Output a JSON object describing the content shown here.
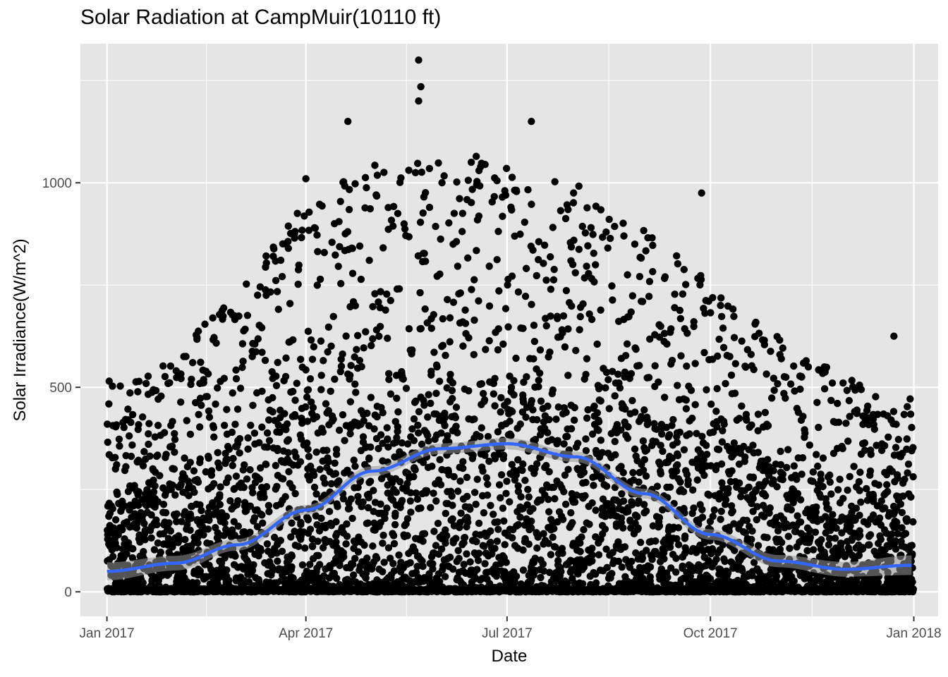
{
  "chart_data": {
    "type": "scatter",
    "title": "Solar Radiation at CampMuir(10110 ft)",
    "xlabel": "Date",
    "ylabel": "Solar Irradiance(W/m^2)",
    "xlim": [
      "2016-12-20",
      "2018-01-12"
    ],
    "ylim": [
      -60,
      1340
    ],
    "x_ticks": [
      {
        "label": "Jan 2017",
        "date": "2017-01-01"
      },
      {
        "label": "Apr 2017",
        "date": "2017-04-01"
      },
      {
        "label": "Jul 2017",
        "date": "2017-07-01"
      },
      {
        "label": "Oct 2017",
        "date": "2017-10-01"
      },
      {
        "label": "Jan 2018",
        "date": "2018-01-01"
      }
    ],
    "y_ticks": [
      {
        "label": "0",
        "value": 0
      },
      {
        "label": "500",
        "value": 500
      },
      {
        "label": "1000",
        "value": 1000
      }
    ],
    "grid": true,
    "legend": "none",
    "point_color": "#000000",
    "smooth_color": "#3366ff",
    "smooth_band_color": "#999999",
    "panel_background": "#e5e5e5",
    "grid_color": "#ffffff",
    "notable_points": [
      {
        "date": "2017-05-22",
        "value": 1300
      },
      {
        "date": "2017-05-23",
        "value": 1235
      },
      {
        "date": "2017-05-22",
        "value": 1200
      },
      {
        "date": "2017-07-12",
        "value": 1150
      },
      {
        "date": "2017-04-20",
        "value": 1150
      },
      {
        "date": "2017-04-01",
        "value": 1010
      },
      {
        "date": "2017-09-27",
        "value": 975
      },
      {
        "date": "2017-12-23",
        "value": 625
      },
      {
        "date": "2017-01-02",
        "value": 515
      }
    ],
    "smooth_series": {
      "name": "",
      "x": [
        "2017-01-01",
        "2017-02-01",
        "2017-03-01",
        "2017-04-01",
        "2017-05-01",
        "2017-06-01",
        "2017-07-01",
        "2017-08-01",
        "2017-09-01",
        "2017-10-01",
        "2017-11-01",
        "2017-12-01",
        "2017-12-31"
      ],
      "y": [
        50,
        70,
        115,
        200,
        295,
        350,
        362,
        330,
        240,
        140,
        75,
        55,
        65
      ],
      "se_band": [
        22,
        18,
        14,
        12,
        12,
        13,
        14,
        13,
        12,
        13,
        15,
        18,
        24
      ]
    },
    "point_cloud_summary": {
      "series_name": "",
      "description_free": true,
      "upper_envelope": {
        "x": [
          "2017-01-01",
          "2017-02-01",
          "2017-03-01",
          "2017-04-01",
          "2017-05-01",
          "2017-06-01",
          "2017-07-01",
          "2017-08-01",
          "2017-09-01",
          "2017-10-01",
          "2017-11-01",
          "2017-12-01",
          "2017-12-31"
        ],
        "y": [
          500,
          580,
          760,
          950,
          1050,
          1080,
          1060,
          1000,
          880,
          760,
          620,
          520,
          480
        ]
      }
    }
  }
}
